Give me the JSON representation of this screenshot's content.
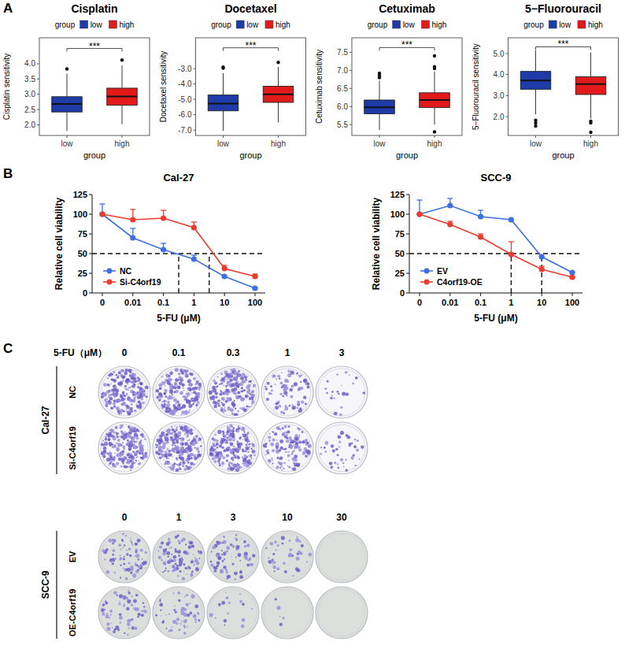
{
  "panel_labels": [
    "A",
    "B",
    "C"
  ],
  "chart_data": [
    {
      "type": "box",
      "title": "Cisplatin",
      "legend_title": "group",
      "legend": "top",
      "x_label": "group",
      "y_label": "Cisplatin sensitivity",
      "categories": [
        "low",
        "high"
      ],
      "ylim": [
        1.65,
        4.85
      ],
      "yticks": [
        {
          "value": 2,
          "label": "2.0"
        },
        {
          "value": 2.5,
          "label": "2.5"
        },
        {
          "value": 3,
          "label": "3.0"
        },
        {
          "value": 3.5,
          "label": "3.5"
        },
        {
          "value": 4,
          "label": "4.0"
        }
      ],
      "boxes": [
        {
          "name": "low",
          "color": "#1f3ba8",
          "whisker_low": 1.8,
          "q1": 2.42,
          "median": 2.68,
          "q3": 2.92,
          "whisker_high": 3.68,
          "outliers": [
            3.83
          ]
        },
        {
          "name": "high",
          "color": "#e31a1c",
          "whisker_low": 2.02,
          "q1": 2.64,
          "median": 2.93,
          "q3": 3.2,
          "whisker_high": 3.95,
          "outliers": [
            4.12
          ]
        }
      ],
      "annotation": {
        "text": "***",
        "y": 4.5
      }
    },
    {
      "type": "box",
      "title": "Docetaxel",
      "legend_title": "group",
      "legend": "top",
      "x_label": "group",
      "y_label": "Docetaxel sensitivity",
      "categories": [
        "low",
        "high"
      ],
      "ylim": [
        -7.35,
        -1.0
      ],
      "yticks": [
        {
          "value": -7,
          "label": "-7.0"
        },
        {
          "value": -6,
          "label": "-6.0"
        },
        {
          "value": -5,
          "label": "-5.0"
        },
        {
          "value": -4,
          "label": "-4.0"
        },
        {
          "value": -3,
          "label": "-3.0"
        }
      ],
      "boxes": [
        {
          "name": "low",
          "color": "#1f3ba8",
          "whisker_low": -7.05,
          "q1": -5.75,
          "median": -5.28,
          "q3": -4.72,
          "whisker_high": -3.3,
          "outliers": [
            -2.9,
            -2.97
          ]
        },
        {
          "name": "high",
          "color": "#e31a1c",
          "whisker_low": -6.5,
          "q1": -5.2,
          "median": -4.68,
          "q3": -4.15,
          "whisker_high": -2.9,
          "outliers": [
            -2.6
          ]
        }
      ],
      "annotation": {
        "text": "***",
        "y": -1.65
      }
    },
    {
      "type": "box",
      "title": "Cetuximab",
      "legend_title": "group",
      "legend": "top",
      "x_label": "group",
      "y_label": "Cetuximab sensitivity",
      "categories": [
        "low",
        "high"
      ],
      "ylim": [
        5.2,
        7.9
      ],
      "yticks": [
        {
          "value": 5.5,
          "label": "5.5"
        },
        {
          "value": 6,
          "label": "6.0"
        },
        {
          "value": 6.5,
          "label": "6.5"
        },
        {
          "value": 7,
          "label": "7.0"
        },
        {
          "value": 7.5,
          "label": "7.5"
        }
      ],
      "boxes": [
        {
          "name": "low",
          "color": "#1f3ba8",
          "whisker_low": 5.35,
          "q1": 5.8,
          "median": 5.98,
          "q3": 6.18,
          "whisker_high": 6.72,
          "outliers": [
            6.8,
            6.86,
            6.92
          ]
        },
        {
          "name": "high",
          "color": "#e31a1c",
          "whisker_low": 5.5,
          "q1": 5.97,
          "median": 6.18,
          "q3": 6.38,
          "whisker_high": 6.97,
          "outliers": [
            5.3,
            7.05,
            7.1,
            7.4
          ]
        }
      ],
      "annotation": {
        "text": "***",
        "y": 7.63
      }
    },
    {
      "type": "box",
      "title": "5−Fluorouracil",
      "legend_title": "group",
      "legend": "top",
      "x_label": "group",
      "y_label": "5−Fluorouracil sensitivity",
      "categories": [
        "low",
        "high"
      ],
      "ylim": [
        1.1,
        5.75
      ],
      "yticks": [
        {
          "value": 2,
          "label": "2.0"
        },
        {
          "value": 3,
          "label": "3.0"
        },
        {
          "value": 4,
          "label": "4.0"
        },
        {
          "value": 5,
          "label": "5.0"
        }
      ],
      "boxes": [
        {
          "name": "low",
          "color": "#1f3ba8",
          "whisker_low": 2.1,
          "q1": 3.3,
          "median": 3.72,
          "q3": 4.15,
          "whisker_high": 5.15,
          "outliers": [
            1.82,
            1.7,
            1.55
          ]
        },
        {
          "name": "high",
          "color": "#e31a1c",
          "whisker_low": 1.9,
          "q1": 3.05,
          "median": 3.55,
          "q3": 3.9,
          "whisker_high": 5.05,
          "outliers": [
            1.78,
            1.7,
            1.25
          ]
        }
      ],
      "annotation": {
        "text": "***",
        "y": 5.32
      }
    },
    {
      "type": "line",
      "title": "Cal-27",
      "x_label": "5-FU (μM)",
      "y_label": "Relative cell viability",
      "legend": "bottom-left",
      "marker": "circle",
      "categories": [
        "0",
        "0.01",
        "0.1",
        "1",
        "10",
        "100"
      ],
      "ylim": [
        0,
        125
      ],
      "yticks": [
        0,
        25,
        50,
        75,
        100,
        125
      ],
      "series": [
        {
          "name": "NC",
          "color": "#3b6fe3",
          "values": [
            100,
            70,
            55,
            43,
            21,
            6
          ],
          "errors": [
            13,
            12,
            8,
            5,
            0,
            0
          ]
        },
        {
          "name": "Si-C4orf19",
          "color": "#ee3b2e",
          "values": [
            100,
            93,
            95,
            83,
            31,
            21
          ],
          "errors": [
            0,
            13,
            10,
            7,
            4,
            3
          ]
        }
      ],
      "ic50_lines": {
        "y": 50,
        "x_index": [
          2.5,
          3.5
        ]
      }
    },
    {
      "type": "line",
      "title": "SCC-9",
      "x_label": "5-FU (μM)",
      "y_label": "Relative cell viability",
      "legend": "bottom-left",
      "marker": "circle",
      "categories": [
        "0",
        "0.01",
        "0.1",
        "1",
        "10",
        "100"
      ],
      "ylim": [
        0,
        125
      ],
      "yticks": [
        0,
        25,
        50,
        75,
        100,
        125
      ],
      "series": [
        {
          "name": "EV",
          "color": "#3b6fe3",
          "values": [
            100,
            111,
            97,
            93,
            46,
            26
          ],
          "errors": [
            18,
            9,
            8,
            0,
            0,
            0
          ]
        },
        {
          "name": "C4orf19-OE",
          "color": "#ee3b2e",
          "values": [
            100,
            87,
            71,
            49,
            30,
            20
          ],
          "errors": [
            0,
            4,
            4,
            16,
            4,
            0
          ]
        }
      ],
      "ic50_lines": {
        "y": 50,
        "x_index": [
          3,
          4
        ]
      }
    }
  ],
  "colony_assay": {
    "dose_label": "5-FU（μM）",
    "cell_lines": [
      {
        "name": "Cal-27",
        "doses": [
          0,
          0.1,
          0.3,
          1,
          3
        ],
        "rows": [
          {
            "label": "NC",
            "density": [
              0.85,
              0.8,
              0.75,
              0.3,
              0.08
            ]
          },
          {
            "label": "Si-C4orf19",
            "density": [
              0.9,
              0.92,
              0.85,
              0.5,
              0.15
            ]
          }
        ]
      },
      {
        "name": "SCC-9",
        "doses": [
          0,
          1,
          3,
          10,
          30
        ],
        "rows": [
          {
            "label": "EV",
            "density": [
              0.3,
              0.35,
              0.3,
              0.15,
              0
            ]
          },
          {
            "label": "OE-C4orf19",
            "density": [
              0.25,
              0.2,
              0.06,
              0.02,
              0
            ]
          }
        ]
      }
    ]
  }
}
